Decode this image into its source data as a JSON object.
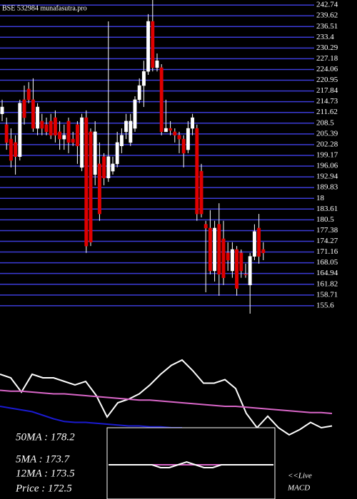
{
  "chart_data": {
    "type": "candlestick",
    "title": "BSE 532984 munafasutra.pro",
    "ylim": [
      153.3,
      244.2
    ],
    "yticks": [
      242.74,
      239.62,
      236.51,
      233.4,
      230.29,
      227.18,
      224.06,
      220.95,
      217.84,
      214.73,
      211.62,
      208.5,
      205.39,
      202.28,
      199.17,
      196.06,
      192.94,
      189.83,
      {
        "value": 186.72,
        "label": "18"
      },
      183.61,
      180.5,
      177.38,
      174.27,
      171.16,
      168.05,
      164.94,
      161.82,
      158.71,
      155.6
    ],
    "grid": true,
    "up_color": "#ffffff",
    "down_color": "#e00000",
    "grid_color": "#3c3cd8",
    "open": [
      211.2,
      208.1,
      203.9,
      202.9,
      198.8,
      215.3,
      218.4,
      215.3,
      207.0,
      209.1,
      208.1,
      209.1,
      210.1,
      206.0,
      203.9,
      209.1,
      203.9,
      208.1,
      195.7,
      210.1,
      206.0,
      193.6,
      196.7,
      198.8,
      192.6,
      194.6,
      196.7,
      201.9,
      206.0,
      202.9,
      207.0,
      215.3,
      219.4,
      223.5,
      238.0,
      224.6,
      224.6,
      206.0,
      207.0,
      206.0,
      205.0,
      203.9,
      200.8,
      207.0,
      207.0,
      194.6,
      179.2,
      178.1,
      165.7,
      179.2,
      175.0,
      170.9,
      165.7,
      171.9,
      170.9,
      164.7,
      161.6,
      169.9,
      178.1,
      171.9
    ],
    "high": [
      215.3,
      210.1,
      207.0,
      205.0,
      215.3,
      219.4,
      220.4,
      221.5,
      214.3,
      211.2,
      210.1,
      211.2,
      212.2,
      209.1,
      208.1,
      210.1,
      206.0,
      209.1,
      211.2,
      212.2,
      207.0,
      209.1,
      202.9,
      199.8,
      238.0,
      198.8,
      206.0,
      207.0,
      211.2,
      211.2,
      216.3,
      221.5,
      226.6,
      240.1,
      244.2,
      228.7,
      225.6,
      215.3,
      209.1,
      207.0,
      206.0,
      205.0,
      209.1,
      211.2,
      208.1,
      196.7,
      180.2,
      183.3,
      180.2,
      185.3,
      180.2,
      174.0,
      174.0,
      172.9,
      171.9,
      167.8,
      170.9,
      179.2,
      182.2,
      174.0
    ],
    "low": [
      209.1,
      200.8,
      195.7,
      193.6,
      197.7,
      208.1,
      214.3,
      206.0,
      205.0,
      205.0,
      205.0,
      203.9,
      202.9,
      200.8,
      200.8,
      199.8,
      201.9,
      196.7,
      194.6,
      170.9,
      172.9,
      190.5,
      180.2,
      190.5,
      191.5,
      193.6,
      195.7,
      199.8,
      203.9,
      201.9,
      206.0,
      214.3,
      213.2,
      222.5,
      223.5,
      223.5,
      205.0,
      206.0,
      205.0,
      202.9,
      199.8,
      195.7,
      199.8,
      205.0,
      180.2,
      181.2,
      159.5,
      164.7,
      162.6,
      158.5,
      161.6,
      165.7,
      163.7,
      158.5,
      163.7,
      163.7,
      153.3,
      168.8,
      167.8,
      168.8
    ],
    "close": [
      213.2,
      202.9,
      197.7,
      198.8,
      214.3,
      210.1,
      215.3,
      207.0,
      213.2,
      207.0,
      206.0,
      205.0,
      205.0,
      203.9,
      205.0,
      202.9,
      202.9,
      201.9,
      210.1,
      172.9,
      174.0,
      206.0,
      182.2,
      192.6,
      198.8,
      196.7,
      202.9,
      205.0,
      209.1,
      209.1,
      215.3,
      219.4,
      223.5,
      238.0,
      224.6,
      226.6,
      206.0,
      207.0,
      206.4,
      205.0,
      203.9,
      199.8,
      207.0,
      210.1,
      182.2,
      182.2,
      178.1,
      165.7,
      178.1,
      164.7,
      163.7,
      168.8,
      171.9,
      160.6,
      165.7,
      164.5,
      169.9,
      177.1,
      169.9,
      170.9
    ],
    "lower_panel": {
      "ylim": [
        0,
        100
      ],
      "series": [
        {
          "color": "#ffffff",
          "values": [
            76,
            72,
            56,
            76,
            72,
            72,
            68,
            64,
            68,
            52,
            28,
            44,
            48,
            54,
            64,
            76,
            86,
            92,
            80,
            66,
            66,
            70,
            60,
            32,
            16,
            29,
            16,
            8,
            14,
            22,
            16,
            18
          ]
        },
        {
          "color": "#d966c8",
          "values": [
            58,
            57,
            57,
            56,
            55,
            54,
            54,
            53,
            52,
            51,
            50,
            49,
            48,
            47,
            47,
            46,
            45,
            44,
            43,
            42,
            41,
            40,
            40,
            39,
            38,
            37,
            36,
            35,
            34,
            33,
            33,
            32
          ]
        },
        {
          "color": "#1a1ad0",
          "values": [
            40,
            38,
            36,
            34,
            30,
            26,
            23,
            22,
            22,
            21,
            20,
            19,
            18,
            18,
            17,
            17,
            16,
            16,
            null,
            null,
            null,
            null,
            null,
            null,
            null,
            null,
            null,
            null,
            null,
            null,
            null,
            null
          ]
        }
      ]
    },
    "macd_panel": {
      "ylim": [
        -10,
        10
      ],
      "series": [
        {
          "color": "#d966c8",
          "values": [
            0,
            0,
            0,
            0,
            0,
            0,
            0,
            0,
            0,
            0,
            0,
            0,
            0,
            0,
            0,
            0,
            0,
            0,
            0,
            0
          ]
        },
        {
          "color": "#ffffff",
          "values": [
            0,
            0,
            0,
            0,
            0,
            0,
            -1,
            -1,
            0,
            1,
            0,
            -1,
            -1,
            0,
            0,
            0,
            0,
            0,
            0,
            0
          ]
        }
      ]
    },
    "stats": [
      "50MA : 178.2",
      "5MA : 173.7",
      "12MA : 173.5",
      "Price   : 172.5"
    ],
    "live_label": "<<Live",
    "macd_label": "MACD"
  }
}
